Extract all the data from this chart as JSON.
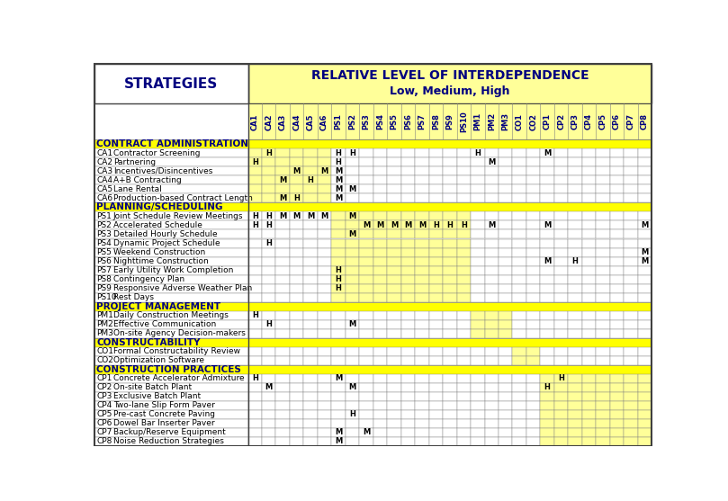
{
  "title_line1": "RELATIVE LEVEL OF INTERDEPENDENCE",
  "title_line2": "Low, Medium, High",
  "strategies_header": "STRATEGIES",
  "col_headers": [
    "CA1",
    "CA2",
    "CA3",
    "CA4",
    "CA5",
    "CA6",
    "PS1",
    "PS2",
    "PS3",
    "PS4",
    "PS5",
    "PS6",
    "PS7",
    "PS8",
    "PS9",
    "PS10",
    "PM1",
    "PM2",
    "PM3",
    "CO1",
    "CO2",
    "CP1",
    "CP2",
    "CP3",
    "CP4",
    "CP5",
    "CP6",
    "CP7",
    "CP8"
  ],
  "section_rows": [
    {
      "label": "CONTRACT ADMINISTRATION",
      "is_section": true
    },
    {
      "code": "CA1",
      "label": "Contractor Screening",
      "is_section": false
    },
    {
      "code": "CA2",
      "label": "Partnering",
      "is_section": false
    },
    {
      "code": "CA3",
      "label": "Incentives/Disincentives",
      "is_section": false
    },
    {
      "code": "CA4",
      "label": "A+B Contracting",
      "is_section": false
    },
    {
      "code": "CA5",
      "label": "Lane Rental",
      "is_section": false
    },
    {
      "code": "CA6",
      "label": "Production-based Contract Length",
      "is_section": false
    },
    {
      "label": "PLANNING/SCHEDULING",
      "is_section": true
    },
    {
      "code": "PS1",
      "label": "Joint Schedule Review Meetings",
      "is_section": false
    },
    {
      "code": "PS2",
      "label": "Accelerated Schedule",
      "is_section": false
    },
    {
      "code": "PS3",
      "label": "Detailed Hourly Schedule",
      "is_section": false
    },
    {
      "code": "PS4",
      "label": "Dynamic Project Schedule",
      "is_section": false
    },
    {
      "code": "PS5",
      "label": "Weekend Construction",
      "is_section": false
    },
    {
      "code": "PS6",
      "label": "Nighttime Construction",
      "is_section": false
    },
    {
      "code": "PS7",
      "label": "Early Utility Work Completion",
      "is_section": false
    },
    {
      "code": "PS8",
      "label": "Contingency Plan",
      "is_section": false
    },
    {
      "code": "PS9",
      "label": "Responsive Adverse Weather Plan",
      "is_section": false
    },
    {
      "code": "PS10",
      "label": "Rest Days",
      "is_section": false
    },
    {
      "label": "PROJECT MANAGEMENT",
      "is_section": true
    },
    {
      "code": "PM1",
      "label": "Daily Construction Meetings",
      "is_section": false
    },
    {
      "code": "PM2",
      "label": "Effective Communication",
      "is_section": false
    },
    {
      "code": "PM3",
      "label": "On-site Agency Decision-makers",
      "is_section": false
    },
    {
      "label": "CONSTRUCTABILITY",
      "is_section": true
    },
    {
      "code": "CO1",
      "label": "Formal Constructability Review",
      "is_section": false
    },
    {
      "code": "CO2",
      "label": "Optimization Software",
      "is_section": false
    },
    {
      "label": "CONSTRUCTION PRACTICES",
      "is_section": true
    },
    {
      "code": "CP1",
      "label": "Concrete Accelerator Admixture",
      "is_section": false
    },
    {
      "code": "CP2",
      "label": "On-site Batch Plant",
      "is_section": false
    },
    {
      "code": "CP3",
      "label": "Exclusive Batch Plant",
      "is_section": false
    },
    {
      "code": "CP4",
      "label": "Two-lane Slip Form Paver",
      "is_section": false
    },
    {
      "code": "CP5",
      "label": "Pre-cast Concrete Paving",
      "is_section": false
    },
    {
      "code": "CP6",
      "label": "Dowel Bar Inserter Paver",
      "is_section": false
    },
    {
      "code": "CP7",
      "label": "Backup/Reserve Equipment",
      "is_section": false
    },
    {
      "code": "CP8",
      "label": "Noise Reduction Strategies",
      "is_section": false
    }
  ],
  "cell_data": {
    "CA1": {
      "CA2": "H",
      "PS1": "H",
      "PS2": "H",
      "PM1": "H",
      "CP1": "M"
    },
    "CA2": {
      "CA1": "H",
      "PS1": "H",
      "PM2": "M"
    },
    "CA3": {
      "CA4": "M",
      "CA6": "M",
      "PS1": "M"
    },
    "CA4": {
      "CA3": "M",
      "CA5": "H",
      "PS1": "M"
    },
    "CA5": {
      "PS1": "M",
      "PS2": "M"
    },
    "CA6": {
      "CA3": "M",
      "CA4": "H",
      "PS1": "M"
    },
    "PS1": {
      "CA1": "H",
      "CA2": "H",
      "CA3": "M",
      "CA4": "M",
      "CA5": "M",
      "CA6": "M",
      "PS2": "M"
    },
    "PS2": {
      "CA1": "H",
      "CA2": "H",
      "PS3": "M",
      "PS4": "M",
      "PS5": "M",
      "PS6": "M",
      "PS7": "M",
      "PS8": "H",
      "PS9": "H",
      "PS10": "H",
      "PM2": "M",
      "CP1": "M",
      "CP8": "M"
    },
    "PS3": {
      "PS2": "M"
    },
    "PS4": {
      "CA2": "H"
    },
    "PS5": {
      "CP8": "M"
    },
    "PS6": {
      "CP1": "M",
      "CP3": "H",
      "CP8": "M"
    },
    "PS7": {
      "PS1": "H"
    },
    "PS8": {
      "PS1": "H"
    },
    "PS9": {
      "PS1": "H"
    },
    "PM1": {
      "CA1": "H"
    },
    "PM2": {
      "CA2": "H",
      "PS2": "M"
    },
    "CP1": {
      "CA1": "H",
      "PS1": "M",
      "CP2": "H"
    },
    "CP2": {
      "CA2": "M",
      "PS2": "M",
      "CP1": "H"
    },
    "CP5": {
      "PS2": "H"
    },
    "CP7": {
      "PS1": "M",
      "PS3": "M"
    },
    "CP8": {
      "PS1": "M"
    }
  },
  "yellow_color": "#FFFF99",
  "section_yellow": "#FFFF00",
  "grid_color": "#808080",
  "text_color": "#000080",
  "bg_color": "#FFFFFF",
  "border_color": "#404040"
}
